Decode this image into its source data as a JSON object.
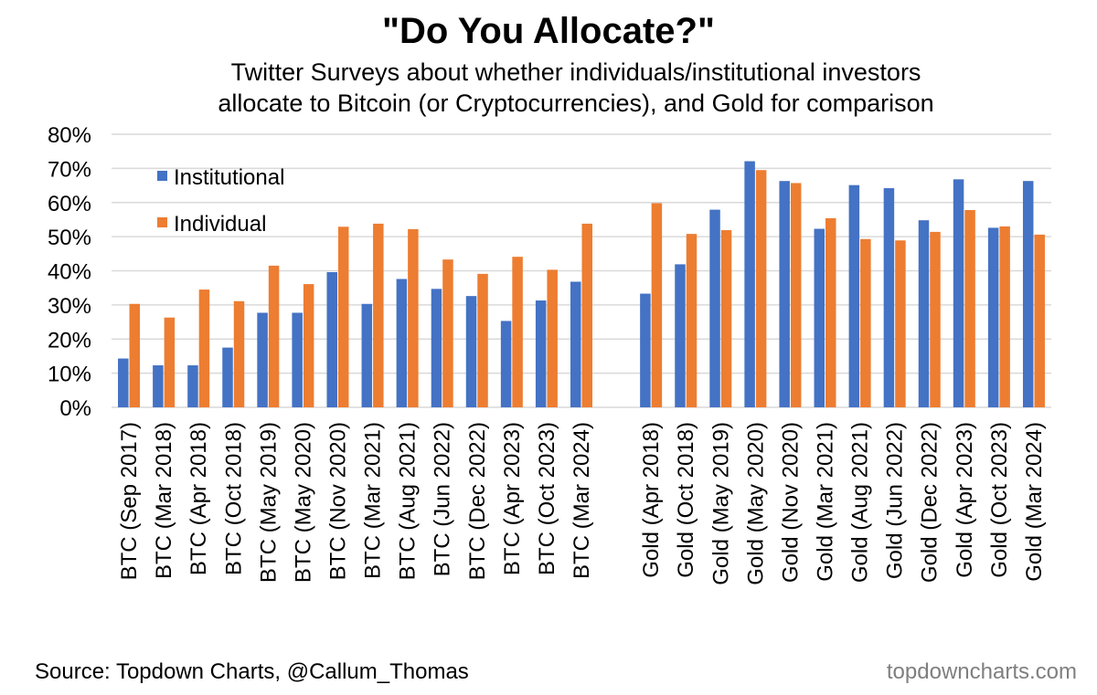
{
  "header": {
    "title": "\"Do You Allocate?\"",
    "subtitle_line1": "Twitter Surveys about whether individuals/institutional investors",
    "subtitle_line2": "allocate to Bitcoin (or Cryptocurrencies), and Gold for comparison"
  },
  "footer": {
    "source": "Source: Topdown Charts, @Callum_Thomas",
    "brand": "topdowncharts.com"
  },
  "colors": {
    "institutional": "#4472C4",
    "individual": "#ED7D31",
    "grid": "#D9D9D9"
  },
  "chart_data": {
    "type": "bar",
    "title": "\"Do You Allocate?\"",
    "ylim": [
      0,
      80
    ],
    "yticks": [
      "0%",
      "10%",
      "20%",
      "30%",
      "40%",
      "50%",
      "60%",
      "70%",
      "80%"
    ],
    "grid": true,
    "legend_position": "top-left",
    "categories": [
      "BTC (Sep 2017)",
      "BTC (Mar 2018)",
      "BTC (Apr 2018)",
      "BTC (Oct 2018)",
      "BTC (May 2019)",
      "BTC (May 2020)",
      "BTC (Nov 2020)",
      "BTC (Mar 2021)",
      "BTC (Aug 2021)",
      "BTC (Jun 2022)",
      "BTC (Dec 2022)",
      "BTC (Apr 2023)",
      "BTC (Oct 2023)",
      "BTC (Mar 2024)",
      "",
      "Gold  (Apr 2018)",
      "Gold  (Oct 2018)",
      "Gold  (May 2019)",
      "Gold  (May 2020)",
      "Gold  (Nov 2020)",
      "Gold  (Mar 2021)",
      "Gold  (Aug 2021)",
      "Gold  (Jun 2022)",
      "Gold (Dec 2022)",
      "Gold  (Apr 2023)",
      "Gold  (Oct 2023)",
      "Gold (Mar 2024)"
    ],
    "series": [
      {
        "name": "Institutional",
        "values": [
          14.3,
          12.3,
          12.3,
          17.5,
          27.7,
          27.7,
          39.6,
          30.3,
          37.6,
          34.7,
          32.6,
          25.3,
          31.3,
          36.8,
          null,
          33.3,
          41.9,
          57.9,
          72.1,
          66.3,
          52.3,
          65.1,
          64.2,
          54.8,
          66.8,
          52.6,
          66.3
        ]
      },
      {
        "name": "Individual",
        "values": [
          30.3,
          26.3,
          34.5,
          31.1,
          41.5,
          36.1,
          52.9,
          53.8,
          52.2,
          43.3,
          39.1,
          44.1,
          40.3,
          53.8,
          null,
          59.8,
          50.8,
          51.9,
          69.5,
          65.7,
          55.4,
          49.3,
          48.9,
          51.4,
          57.8,
          53.0,
          50.6
        ]
      }
    ]
  }
}
